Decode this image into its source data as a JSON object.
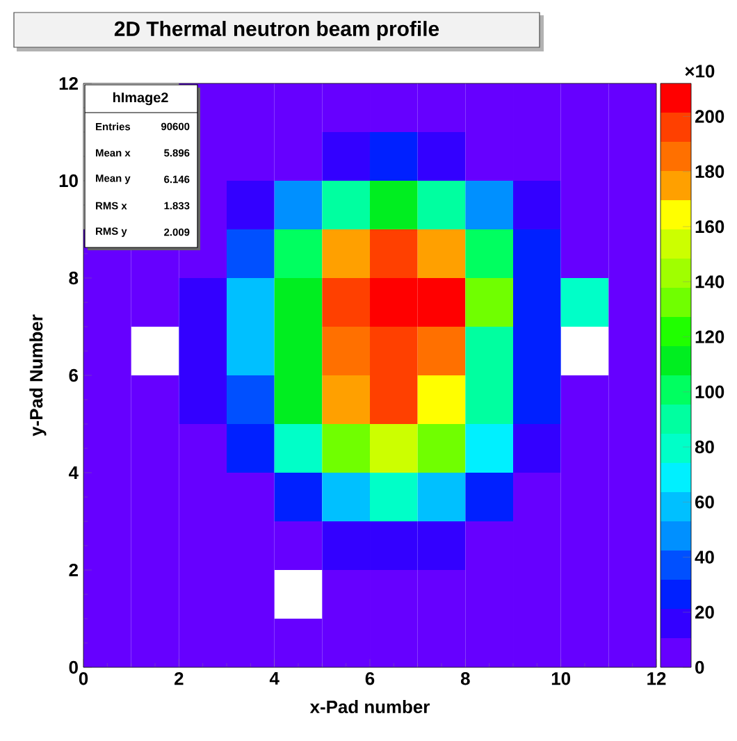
{
  "chart_data": {
    "type": "heatmap",
    "title": "2D Thermal neutron beam profile",
    "xlabel": "x-Pad number",
    "ylabel": "y-Pad Number",
    "xlim": [
      0,
      12
    ],
    "ylim": [
      0,
      12
    ],
    "xticks": [
      0,
      2,
      4,
      6,
      8,
      10,
      12
    ],
    "yticks": [
      0,
      2,
      4,
      6,
      8,
      10,
      12
    ],
    "clim": [
      0,
      212
    ],
    "cticks": [
      0,
      20,
      40,
      60,
      80,
      100,
      120,
      140,
      160,
      180,
      200
    ],
    "cells": [
      [
        null,
        null,
        5,
        5,
        5,
        5,
        5,
        5,
        5,
        5,
        5,
        5
      ],
      [
        null,
        null,
        5,
        5,
        5,
        15,
        25,
        15,
        5,
        5,
        5,
        5
      ],
      [
        null,
        null,
        5,
        15,
        45,
        85,
        110,
        85,
        45,
        15,
        5,
        5
      ],
      [
        5,
        5,
        5,
        35,
        100,
        175,
        195,
        175,
        100,
        30,
        5,
        5
      ],
      [
        5,
        5,
        15,
        60,
        110,
        198,
        205,
        205,
        135,
        30,
        75,
        5
      ],
      [
        5,
        null,
        15,
        60,
        110,
        185,
        195,
        185,
        85,
        30,
        null,
        5
      ],
      [
        5,
        5,
        15,
        35,
        110,
        175,
        195,
        165,
        85,
        30,
        5,
        5
      ],
      [
        5,
        5,
        5,
        25,
        75,
        135,
        155,
        135,
        65,
        15,
        5,
        5
      ],
      [
        5,
        5,
        5,
        5,
        25,
        55,
        75,
        55,
        25,
        5,
        5,
        5
      ],
      [
        5,
        5,
        5,
        5,
        5,
        15,
        15,
        15,
        5,
        5,
        5,
        5
      ],
      [
        5,
        5,
        5,
        5,
        null,
        5,
        5,
        5,
        5,
        5,
        5,
        5
      ],
      [
        5,
        5,
        5,
        5,
        5,
        5,
        5,
        5,
        5,
        5,
        5,
        5
      ]
    ],
    "annotations": [
      "hImage2",
      "Entries",
      "90600",
      "Mean x",
      "5.896",
      "Mean y",
      "6.146",
      "RMS x",
      "1.833",
      "RMS y",
      "2.009",
      "×10"
    ]
  }
}
